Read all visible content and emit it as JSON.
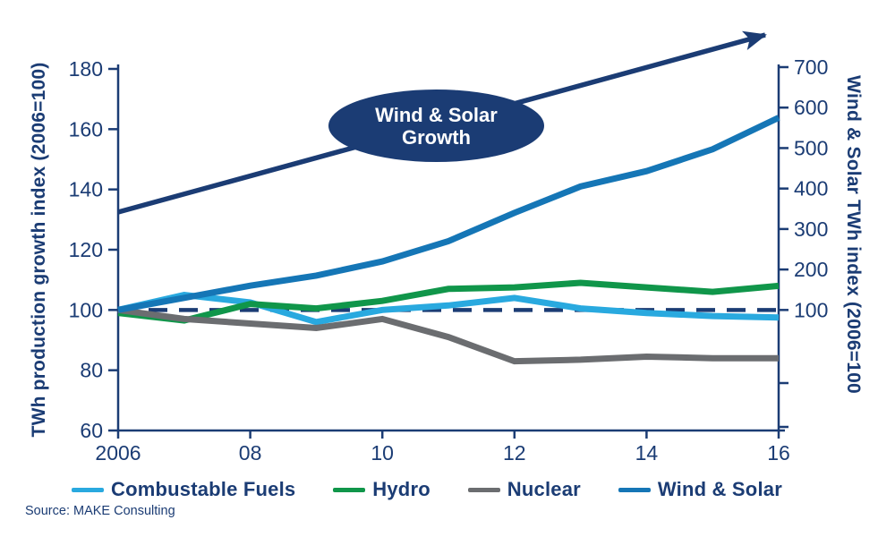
{
  "source": "Source: MAKE Consulting",
  "annotation": {
    "line1": "Wind & Solar",
    "line2": "Growth"
  },
  "axes": {
    "left": {
      "label": "TWh production growth index (2006=100)",
      "tick_labels": [
        "180",
        "160",
        "140",
        "120",
        "100",
        "80",
        "60"
      ],
      "tick_values": [
        180,
        160,
        140,
        120,
        100,
        80,
        60
      ],
      "range": [
        60,
        180
      ]
    },
    "right": {
      "label": "Wind & Solar TWh  index (2006=100",
      "tick_labels": [
        "700",
        "600",
        "500",
        "400",
        "300",
        "200",
        "100"
      ],
      "tick_values": [
        700,
        600,
        500,
        400,
        300,
        200,
        100
      ],
      "range_labeled": [
        100,
        700
      ]
    },
    "x": {
      "tick_labels": [
        "2006",
        "08",
        "10",
        "12",
        "14",
        "16"
      ],
      "tick_values": [
        2006,
        2008,
        2010,
        2012,
        2014,
        2016
      ]
    }
  },
  "chart_data": {
    "type": "line",
    "x": [
      2006,
      2007,
      2008,
      2009,
      2010,
      2011,
      2012,
      2013,
      2014,
      2015,
      2016
    ],
    "series": [
      {
        "name": "Combustable Fuels",
        "axis": "left",
        "color": "#29A9DF",
        "values": [
          100,
          105,
          102.5,
          96,
          100,
          101.5,
          104,
          100.5,
          99,
          98,
          97.5
        ]
      },
      {
        "name": "Hydro",
        "axis": "left",
        "color": "#10964A",
        "values": [
          99,
          96.5,
          102,
          100.5,
          103,
          107,
          107.5,
          109,
          107.5,
          106,
          108
        ]
      },
      {
        "name": "Nuclear",
        "axis": "left",
        "color": "#6B6D70",
        "values": [
          100,
          97,
          95.5,
          94,
          97,
          91,
          83,
          83.5,
          84.5,
          84,
          84
        ]
      },
      {
        "name": "Wind & Solar",
        "axis": "right",
        "color": "#1576B6",
        "values": [
          100,
          130,
          160,
          185,
          220,
          270,
          340,
          405,
          443,
          497,
          575
        ]
      }
    ],
    "reference_line": {
      "axis": "left",
      "value": 100,
      "style": "dashed"
    },
    "annotation_arrow": {
      "direction": "up-right"
    },
    "grid": false,
    "legend_position": "bottom",
    "xlabel": "",
    "ylabel_left": "TWh production growth index (2006=100)",
    "ylabel_right": "Wind & Solar TWh  index (2006=100",
    "ylim_left": [
      60,
      180
    ],
    "ylim_right_labeled": [
      100,
      700
    ]
  },
  "colors": {
    "navy": "#1B3C74",
    "combustable_fuels": "#29A9DF",
    "hydro": "#10964A",
    "nuclear": "#6B6D70",
    "wind_solar": "#1576B6",
    "annotation_fill": "#1B3C74",
    "annotation_text": "#FFFFFF",
    "background": "#FFFFFF"
  }
}
